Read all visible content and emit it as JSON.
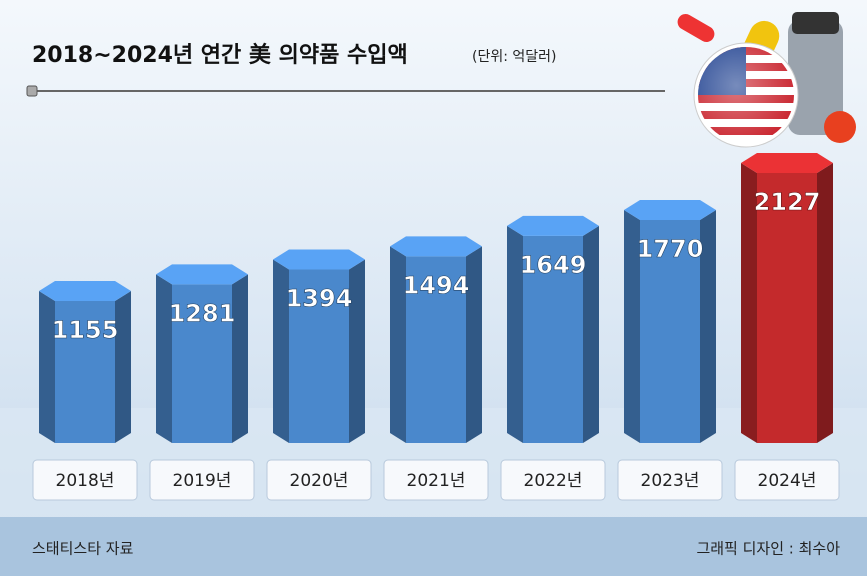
{
  "chart_data": {
    "type": "bar",
    "title": "2018~2024년 연간 美 의약품 수입액",
    "subtitle": "(단위: 억달러)",
    "categories": [
      "2018년",
      "2019년",
      "2020년",
      "2021년",
      "2022년",
      "2023년",
      "2024년"
    ],
    "values": [
      1155,
      1281,
      1394,
      1494,
      1649,
      1770,
      2127
    ],
    "colors": [
      "#4a88cc",
      "#4a88cc",
      "#4a88cc",
      "#4a88cc",
      "#4a88cc",
      "#4a88cc",
      "#c42a2c"
    ],
    "source": "스태티스타 자료",
    "credit": "그래픽 디자인 : 최수아"
  }
}
